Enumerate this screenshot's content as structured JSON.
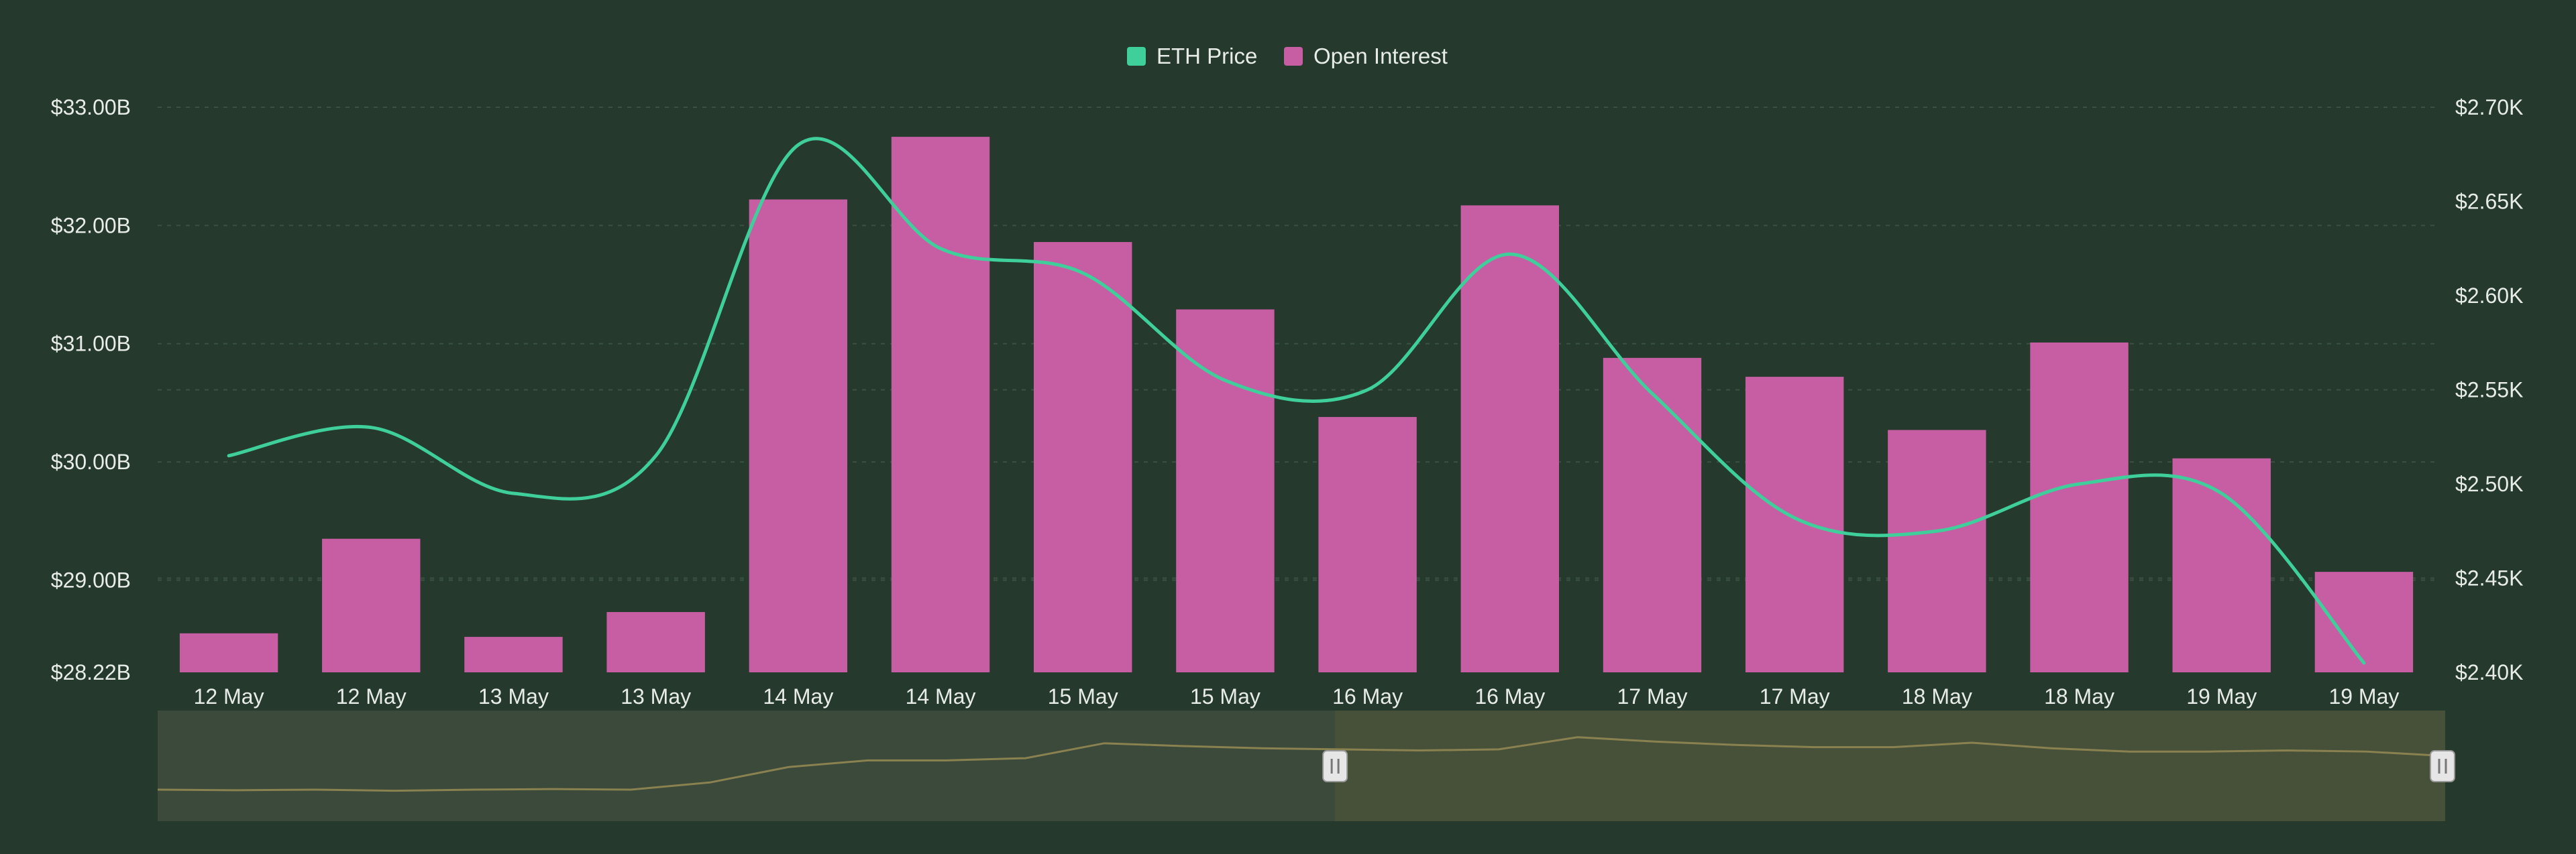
{
  "colors": {
    "background": "#253a2c",
    "eth_price": "#3ecf9a",
    "open_interest": "#c75ea3",
    "axis_text": "#e7ece8",
    "grid": "#3a5242",
    "navigator_fill": "#3b4a3a",
    "navigator_selected": "#47513a",
    "navigator_line": "#8a8150",
    "navigator_handle": "#e6e6e6"
  },
  "legend": [
    {
      "name": "ETH Price",
      "color": "#3ecf9a"
    },
    {
      "name": "Open Interest",
      "color": "#c75ea3"
    }
  ],
  "chart_data": {
    "type": "bar",
    "categories": [
      "12 May",
      "12 May",
      "13 May",
      "13 May",
      "14 May",
      "14 May",
      "15 May",
      "15 May",
      "16 May",
      "16 May",
      "17 May",
      "17 May",
      "18 May",
      "18 May",
      "19 May",
      "19 May"
    ],
    "series": [
      {
        "name": "Open Interest",
        "type": "bar",
        "axis": "left",
        "values": [
          28.55,
          29.35,
          28.52,
          28.73,
          32.22,
          32.75,
          31.86,
          31.29,
          30.38,
          32.17,
          30.88,
          30.72,
          30.27,
          31.01,
          30.03,
          29.07
        ]
      },
      {
        "name": "ETH Price",
        "type": "line",
        "axis": "right",
        "values": [
          2515,
          2530,
          2495,
          2515,
          2680,
          2625,
          2612,
          2555,
          2550,
          2622,
          2548,
          2482,
          2475,
          2500,
          2495,
          2405
        ]
      }
    ],
    "y_left": {
      "ticks": [
        "$33.00B",
        "$32.00B",
        "$31.00B",
        "$30.00B",
        "$29.00B",
        "$28.22B"
      ],
      "tick_values": [
        33.0,
        32.0,
        31.0,
        30.0,
        29.0,
        28.22
      ],
      "min": 28.22,
      "max": 33.0
    },
    "y_right": {
      "ticks": [
        "$2.70K",
        "$2.65K",
        "$2.60K",
        "$2.55K",
        "$2.50K",
        "$2.45K",
        "$2.40K"
      ],
      "tick_values": [
        2700,
        2650,
        2600,
        2550,
        2500,
        2450,
        2400
      ],
      "min": 2400,
      "max": 2700
    },
    "grid": true,
    "legend_position": "top-center",
    "navigator": {
      "values": [
        28.55,
        28.5,
        28.55,
        28.45,
        28.55,
        28.6,
        28.55,
        29.2,
        30.6,
        31.2,
        31.2,
        31.4,
        32.75,
        32.5,
        32.3,
        32.2,
        32.1,
        32.2,
        33.3,
        32.9,
        32.6,
        32.4,
        32.4,
        32.8,
        32.3,
        32.0,
        32.0,
        32.1,
        32.0,
        31.6
      ],
      "selection_start": 0.5147,
      "selection_end": 1.0
    }
  }
}
